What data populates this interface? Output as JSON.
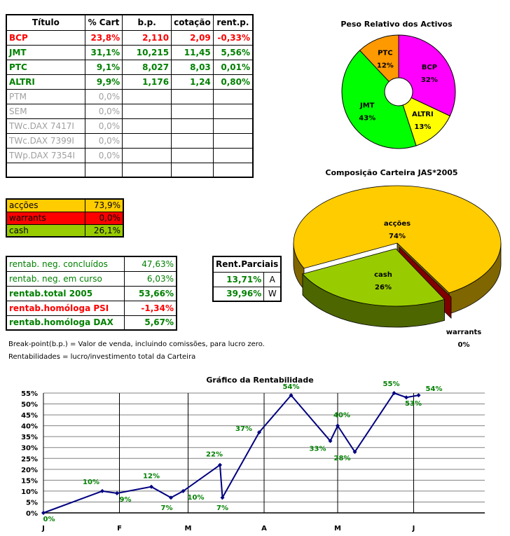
{
  "holdings_table": {
    "headers": [
      "Título",
      "% Cart",
      "b.p.",
      "cotação",
      "rent.p."
    ],
    "rows": [
      {
        "titulo": "BCP",
        "cart": "23,8%",
        "bp": "2,110",
        "cotacao": "2,09",
        "rent": "-0,33%",
        "color": "#ff0000"
      },
      {
        "titulo": "JMT",
        "cart": "31,1%",
        "bp": "10,215",
        "cotacao": "11,45",
        "rent": "5,56%",
        "color": "#008000"
      },
      {
        "titulo": "PTC",
        "cart": "9,1%",
        "bp": "8,027",
        "cotacao": "8,03",
        "rent": "0,01%",
        "color": "#008000"
      },
      {
        "titulo": "ALTRI",
        "cart": "9,9%",
        "bp": "1,176",
        "cotacao": "1,24",
        "rent": "0,80%",
        "color": "#008000"
      },
      {
        "titulo": "PTM",
        "cart": "0,0%",
        "bp": "",
        "cotacao": "",
        "rent": "",
        "color": "#a0a0a0"
      },
      {
        "titulo": "SEM",
        "cart": "0,0%",
        "bp": "",
        "cotacao": "",
        "rent": "",
        "color": "#a0a0a0"
      },
      {
        "titulo": "TWc.DAX 7417I",
        "cart": "0,0%",
        "bp": "",
        "cotacao": "",
        "rent": "",
        "color": "#a0a0a0"
      },
      {
        "titulo": "TWc.DAX 7399I",
        "cart": "0,0%",
        "bp": "",
        "cotacao": "",
        "rent": "",
        "color": "#a0a0a0"
      },
      {
        "titulo": "TWp.DAX 7354I",
        "cart": "0,0%",
        "bp": "",
        "cotacao": "",
        "rent": "",
        "color": "#a0a0a0"
      },
      {
        "titulo": "",
        "cart": "",
        "bp": "",
        "cotacao": "",
        "rent": "",
        "color": "#000000"
      }
    ]
  },
  "allocation": [
    {
      "label": "acções",
      "value": "73,9%",
      "color": "#ffcc00"
    },
    {
      "label": "warrants",
      "value": "0,0%",
      "color": "#ff0000"
    },
    {
      "label": "cash",
      "value": "26,1%",
      "color": "#99cc00"
    }
  ],
  "returns": [
    {
      "label": "rentab. neg. concluídos",
      "value": "47,63%"
    },
    {
      "label": "rentab. neg. em curso",
      "value": "6,03%"
    },
    {
      "label": "rentab.total 2005",
      "value": "53,66%"
    },
    {
      "label": "rentab.homóloga PSI",
      "value": "-1,34%"
    },
    {
      "label": "rentab.homóloga DAX",
      "value": "5,67%"
    }
  ],
  "partial": {
    "title": "Rent.Parciais",
    "rows": [
      {
        "value": "13,71%",
        "label": "A"
      },
      {
        "value": "39,96%",
        "label": "W"
      }
    ]
  },
  "notes": [
    "Break-point(b.p.) = Valor de venda, incluindo comissões, para lucro zero.",
    "Rentabilidades = lucro/investimento total da Carteira"
  ],
  "chart_data": [
    {
      "type": "pie",
      "variant": "doughnut",
      "title": "Peso Relativo dos Activos",
      "slices": [
        {
          "label": "BCP",
          "value": 32,
          "text": "32%",
          "color": "#ff00ff"
        },
        {
          "label": "ALTRI",
          "value": 13,
          "text": "13%",
          "color": "#ffff00"
        },
        {
          "label": "JMT",
          "value": 43,
          "text": "43%",
          "color": "#00ff00"
        },
        {
          "label": "PTC",
          "value": 12,
          "text": "12%",
          "color": "#ff9900"
        }
      ]
    },
    {
      "type": "pie",
      "variant": "3d-exploded",
      "title": "Composição Carteira JAS*2005",
      "slices": [
        {
          "label": "acções",
          "value": 74,
          "text": "74%",
          "color": "#ffcc00"
        },
        {
          "label": "cash",
          "value": 26,
          "text": "26%",
          "color": "#99cc00"
        },
        {
          "label": "warrants",
          "value": 0,
          "text": "0%",
          "color": "#800000"
        }
      ]
    },
    {
      "type": "line",
      "title": "Gráfico da Rentabilidade",
      "xlabel": "",
      "ylabel": "",
      "x_ticks": [
        "J",
        "F",
        "M",
        "A",
        "M",
        "J"
      ],
      "xlim": [
        "2005-01-01",
        "2005-06-30"
      ],
      "y_ticks": [
        "0%",
        "5%",
        "10%",
        "15%",
        "20%",
        "25%",
        "30%",
        "35%",
        "40%",
        "45%",
        "50%",
        "55%"
      ],
      "ylim": [
        0,
        55
      ],
      "grid": true,
      "line_color": "#000080",
      "label_color": "#008000",
      "points": [
        {
          "x": "2005-01-01",
          "y": 0
        },
        {
          "x": "2005-01-25",
          "y": 10
        },
        {
          "x": "2005-01-31",
          "y": 9
        },
        {
          "x": "2005-02-14",
          "y": 12
        },
        {
          "x": "2005-02-22",
          "y": 7
        },
        {
          "x": "2005-02-27",
          "y": 10
        },
        {
          "x": "2005-03-14",
          "y": 22
        },
        {
          "x": "2005-03-15",
          "y": 7
        },
        {
          "x": "2005-03-30",
          "y": 37
        },
        {
          "x": "2005-04-12",
          "y": 54
        },
        {
          "x": "2005-04-28",
          "y": 33
        },
        {
          "x": "2005-05-01",
          "y": 40
        },
        {
          "x": "2005-05-08",
          "y": 28
        },
        {
          "x": "2005-05-24",
          "y": 55
        },
        {
          "x": "2005-05-29",
          "y": 53
        },
        {
          "x": "2005-06-03",
          "y": 54
        }
      ]
    }
  ]
}
